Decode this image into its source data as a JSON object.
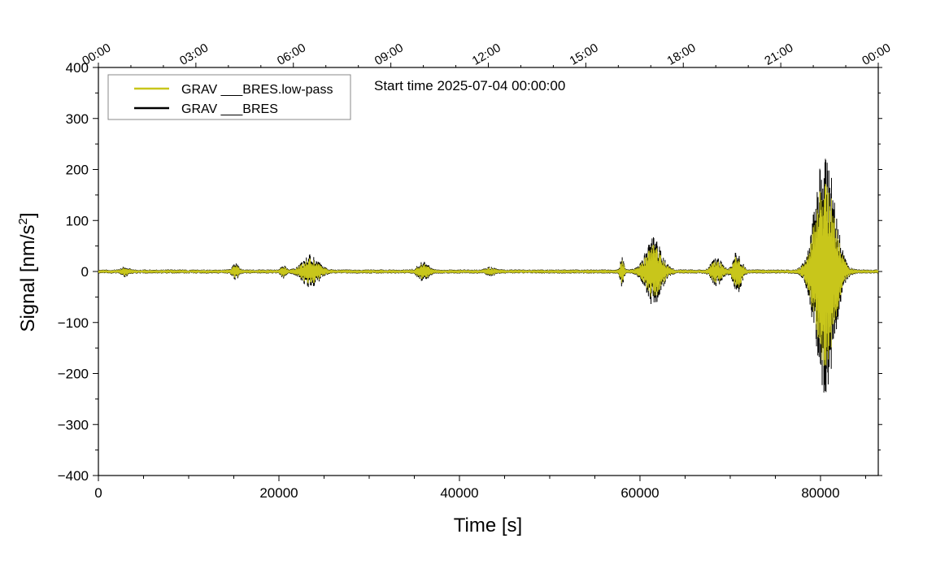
{
  "chart_data": {
    "type": "line",
    "xlabel": "Time [s]",
    "ylabel": "Signal [nm/s",
    "ylabel_sup": "2",
    "ylabel_end": "]",
    "annotation": "Start time 2025-07-04 00:00:00",
    "xlim": [
      0,
      86400
    ],
    "ylim": [
      -400,
      400
    ],
    "x_ticks": [
      0,
      20000,
      40000,
      60000,
      80000
    ],
    "x_tick_labels": [
      "0",
      "20000",
      "40000",
      "60000",
      "80000"
    ],
    "y_ticks": [
      -400,
      -300,
      -200,
      -100,
      0,
      100,
      200,
      300,
      400
    ],
    "y_tick_labels": [
      "−400",
      "−300",
      "−200",
      "−100",
      "0",
      "100",
      "200",
      "300",
      "400"
    ],
    "top_axis": {
      "ticks": [
        0,
        10800,
        21600,
        32400,
        43200,
        54000,
        64800,
        75600,
        86400
      ],
      "labels": [
        "00:00",
        "03:00",
        "06:00",
        "09:00",
        "12:00",
        "15:00",
        "18:00",
        "21:00",
        "00:00"
      ]
    },
    "legend_position": "top-left",
    "background_noise_amplitude": 4,
    "bursts": [
      {
        "t": 3000,
        "amp": 7,
        "width": 600
      },
      {
        "t": 15200,
        "amp": 14,
        "width": 500
      },
      {
        "t": 20500,
        "amp": 10,
        "width": 400
      },
      {
        "t": 23500,
        "amp": 30,
        "width": 1400
      },
      {
        "t": 36000,
        "amp": 16,
        "width": 900
      },
      {
        "t": 43500,
        "amp": 6,
        "width": 800
      },
      {
        "t": 58000,
        "amp": 27,
        "width": 300
      },
      {
        "t": 61500,
        "amp": 65,
        "width": 1400
      },
      {
        "t": 68500,
        "amp": 25,
        "width": 900
      },
      {
        "t": 70800,
        "amp": 40,
        "width": 700
      },
      {
        "t": 80500,
        "amp": 245,
        "width": 1700
      }
    ],
    "series": [
      {
        "name": "GRAV ___BRES.low-pass",
        "color": "#c8c61b",
        "scale": 0.78
      },
      {
        "name": "GRAV ___BRES",
        "color": "#000000",
        "scale": 1.0
      }
    ]
  }
}
